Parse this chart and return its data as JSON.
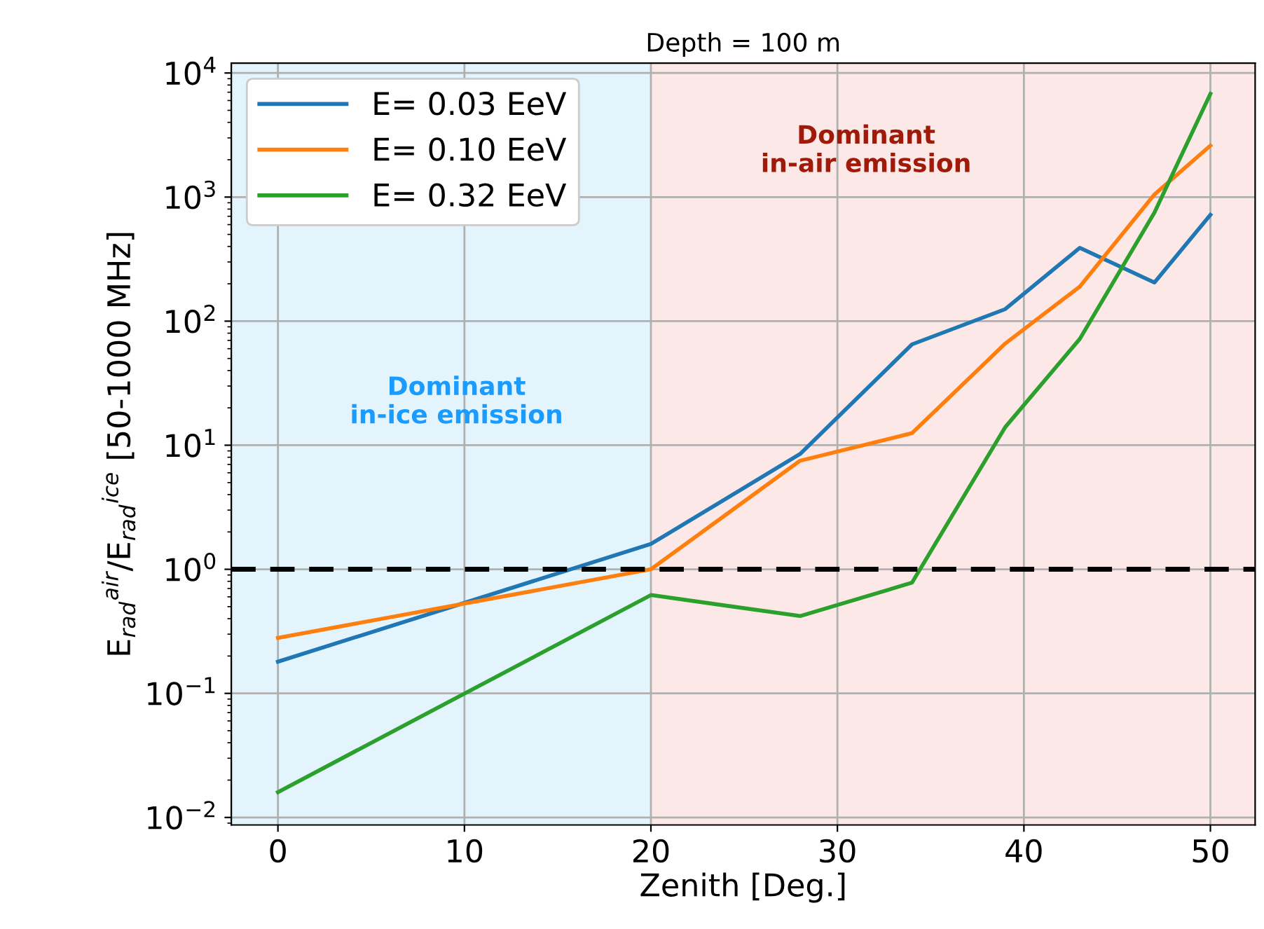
{
  "chart_data": {
    "type": "line",
    "title": "Depth = 100 m",
    "xlabel": "Zenith [Deg.]",
    "ylabel": "E$_{rad}$$^{air}$/E$_{rad}$$^{ice}$ [50-1000 MHz]",
    "series": [
      {
        "name": "E= 0.03 EeV",
        "color": "#1f77b4",
        "x": [
          0,
          20,
          28,
          34,
          39,
          43,
          47,
          50
        ],
        "values": [
          0.18,
          1.6,
          8.5,
          65,
          125,
          390,
          205,
          720
        ]
      },
      {
        "name": "E= 0.10 EeV",
        "color": "#ff7f0e",
        "x": [
          0,
          20,
          28,
          34,
          39,
          43,
          47,
          50
        ],
        "values": [
          0.28,
          1.0,
          7.5,
          12.5,
          66,
          190,
          1050,
          2600
        ]
      },
      {
        "name": "E= 0.32 EeV",
        "color": "#2ca02c",
        "x": [
          0,
          20,
          28,
          34,
          39,
          43,
          47,
          50
        ],
        "values": [
          0.016,
          0.62,
          0.42,
          0.78,
          14,
          72,
          750,
          6800
        ]
      }
    ],
    "log": "y",
    "xlim": [
      -2.5,
      52.4
    ],
    "ylim": [
      0.0087,
      12000
    ],
    "xticks": [
      0,
      10,
      20,
      30,
      40,
      50
    ],
    "yticks": [
      {
        "value": 0.01,
        "label": "10$^{−2}$"
      },
      {
        "value": 0.1,
        "label": "10$^{−1}$"
      },
      {
        "value": 1,
        "label": "10$^{0}$"
      },
      {
        "value": 10,
        "label": "10$^{1}$"
      },
      {
        "value": 100,
        "label": "10$^{2}$"
      },
      {
        "value": 1000,
        "label": "10$^{3}$"
      },
      {
        "value": 10000,
        "label": "10$^{4}$"
      }
    ],
    "bands": [
      {
        "axis": "x",
        "from": -2.5,
        "to": 20,
        "color": "#e3f4fc"
      },
      {
        "axis": "x",
        "from": 20,
        "to": 52.4,
        "color": "#fde8e8"
      }
    ],
    "ref_lines": [
      {
        "axis": "y",
        "value": 1,
        "color": "#000000",
        "line_style": "dashed"
      }
    ],
    "annotations": [
      "Dominant\nin-ice emission",
      "Dominant\nin-air emission"
    ],
    "grid": true,
    "legend": "top left",
    "line_style": "solid",
    "marker": "none"
  }
}
